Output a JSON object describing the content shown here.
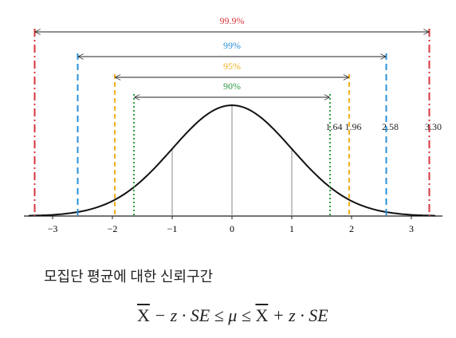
{
  "axis": {
    "ticks": [
      {
        "value": -3,
        "label": "−3"
      },
      {
        "value": -2,
        "label": "−2"
      },
      {
        "value": -1,
        "label": "−1"
      },
      0,
      1,
      2,
      3
    ]
  },
  "intervals": [
    {
      "label": "99.9%",
      "z": {
        "value": 3.3,
        "label": "3.30"
      },
      "color": "#d9363e"
    },
    {
      "label": "99%",
      "z": 2.58,
      "color": "#2b8fd6"
    },
    {
      "label": "95%",
      "z": 1.96,
      "color": "#f2b124"
    },
    {
      "label": "90%",
      "z": 1.64,
      "color": "#2e9e45"
    }
  ],
  "caption": "모집단 평균에 대한 신뢰구간",
  "formula": {
    "left_mean": "X",
    "left": "− z · SE ≤ μ ≤",
    "right_mean": "X",
    "right": "+ z · SE"
  }
}
